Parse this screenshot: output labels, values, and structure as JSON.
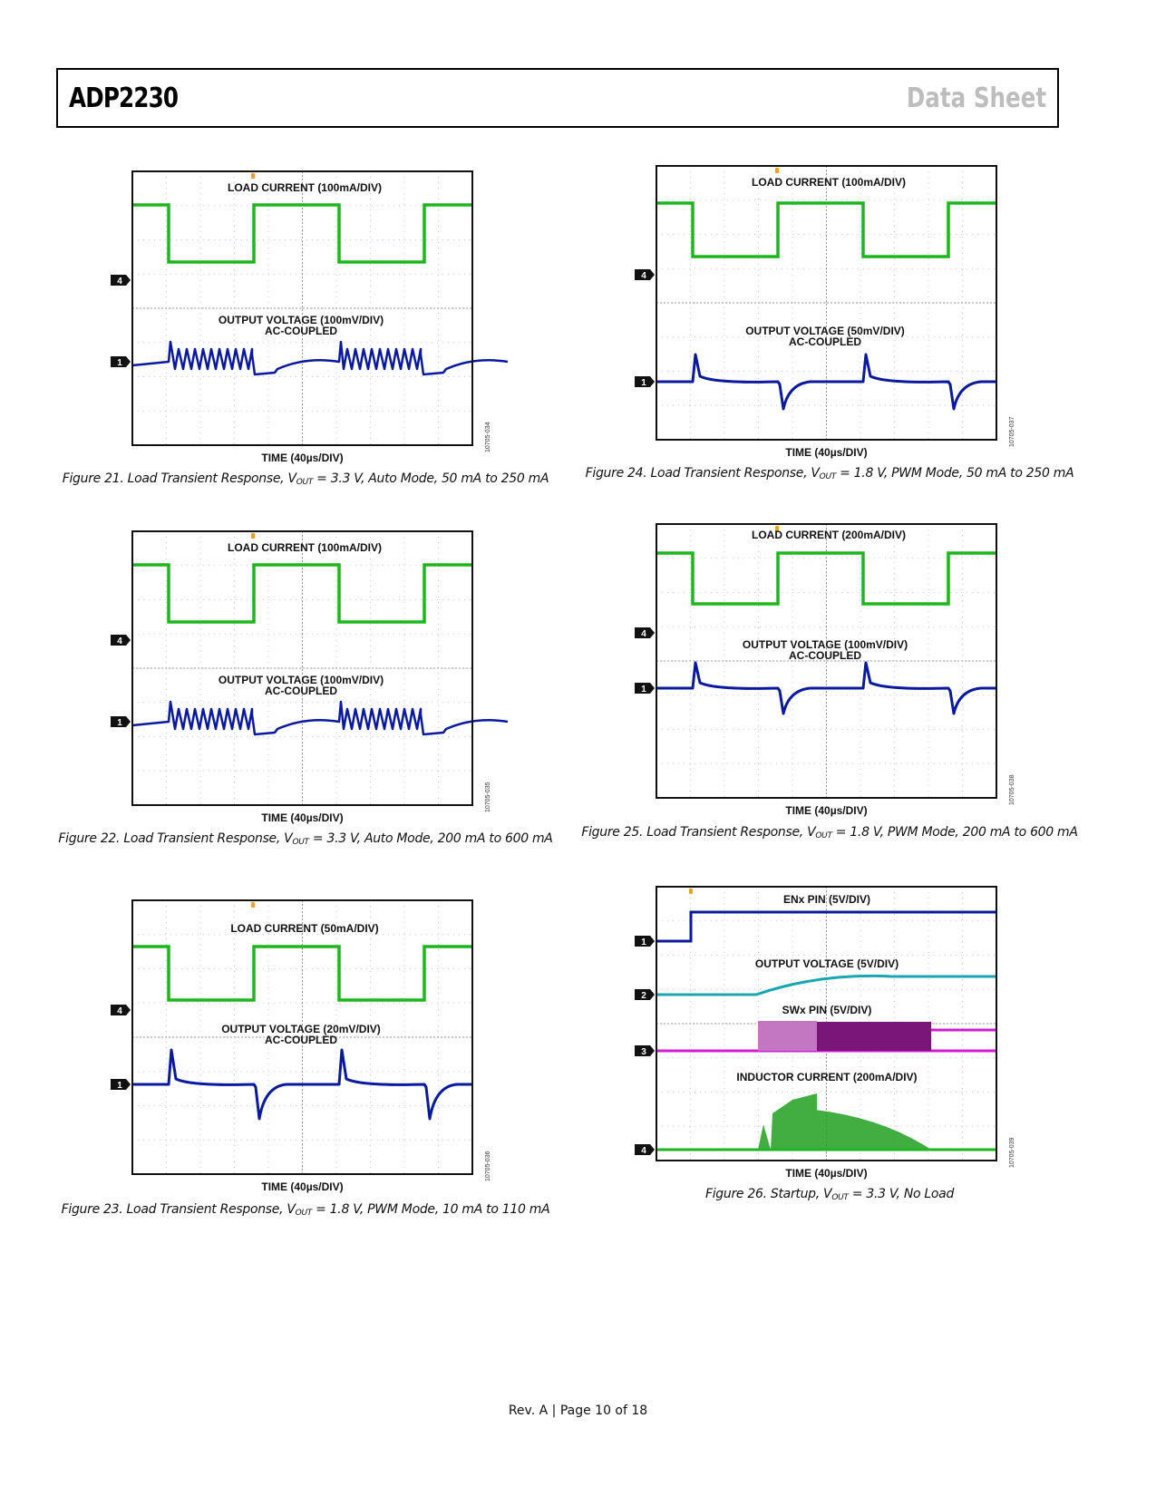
{
  "header": {
    "part_number": "ADP2230",
    "doc_type": "Data Sheet"
  },
  "footer": {
    "text": "Rev. A | Page 10 of 18"
  },
  "colors": {
    "green": "#1fb51f",
    "blue": "#0a1a9e",
    "cyan": "#19a6b0",
    "magenta": "#d21cd2",
    "trigger": "#f0a020"
  },
  "figures": [
    {
      "id": "fig21",
      "caption_pre": "Figure 21. Load Transient Response, V",
      "caption_sub": "OUT",
      "caption_post": " = 3.3 V, Auto Mode, 50 mA to 250 mA",
      "labels": [
        "LOAD CURRENT (100mA/DIV)",
        "OUTPUT VOLTAGE (100mV/DIV)",
        "AC-COUPLED"
      ],
      "time_label": "TIME (40µs/DIV)",
      "figure_code": "10705-034",
      "markers": [
        "4",
        "1"
      ],
      "kind": "auto"
    },
    {
      "id": "fig22",
      "caption_pre": "Figure 22. Load Transient Response, V",
      "caption_sub": "OUT",
      "caption_post": " = 3.3 V, Auto Mode, 200 mA to 600 mA",
      "labels": [
        "LOAD CURRENT (100mA/DIV)",
        "OUTPUT VOLTAGE (100mV/DIV)",
        "AC-COUPLED"
      ],
      "time_label": "TIME (40µs/DIV)",
      "figure_code": "10705-035",
      "markers": [
        "4",
        "1"
      ],
      "kind": "auto"
    },
    {
      "id": "fig23",
      "caption_pre": "Figure 23. Load Transient Response, V",
      "caption_sub": "OUT",
      "caption_post": " = 1.8 V, PWM Mode, 10 mA to 110 mA",
      "labels": [
        "LOAD CURRENT (50mA/DIV)",
        "OUTPUT VOLTAGE (20mV/DIV)",
        "AC-COUPLED"
      ],
      "time_label": "TIME (40µs/DIV)",
      "figure_code": "10705-036",
      "markers": [
        "4",
        "1"
      ],
      "kind": "pwm23"
    },
    {
      "id": "fig24",
      "caption_pre": "Figure 24. Load Transient Response, V",
      "caption_sub": "OUT",
      "caption_post": " = 1.8 V, PWM Mode, 50 mA to 250 mA",
      "labels": [
        "LOAD CURRENT (100mA/DIV)",
        "OUTPUT VOLTAGE (50mV/DIV)",
        "AC-COUPLED"
      ],
      "time_label": "TIME (40µs/DIV)",
      "figure_code": "10705-037",
      "markers": [
        "4",
        "1"
      ],
      "kind": "pwm24"
    },
    {
      "id": "fig25",
      "caption_pre": "Figure 25. Load Transient Response, V",
      "caption_sub": "OUT",
      "caption_post": " = 1.8 V, PWM Mode, 200 mA to 600 mA",
      "labels": [
        "LOAD CURRENT (200mA/DIV)",
        "OUTPUT VOLTAGE (100mV/DIV)",
        "AC-COUPLED"
      ],
      "time_label": "TIME (40µs/DIV)",
      "figure_code": "10705-038",
      "markers": [
        "4",
        "1"
      ],
      "kind": "pwm25"
    },
    {
      "id": "fig26",
      "caption_pre": "Figure 26. Startup, V",
      "caption_sub": "OUT",
      "caption_post": " = 3.3 V, No Load",
      "labels": [
        "ENx PIN (5V/DIV)",
        "OUTPUT VOLTAGE (5V/DIV)",
        "SWx PIN (5V/DIV)",
        "INDUCTOR CURRENT (200mA/DIV)"
      ],
      "time_label": "TIME (40µs/DIV)",
      "figure_code": "10705-039",
      "markers": [
        "1",
        "2",
        "3",
        "4"
      ],
      "kind": "startup"
    }
  ]
}
